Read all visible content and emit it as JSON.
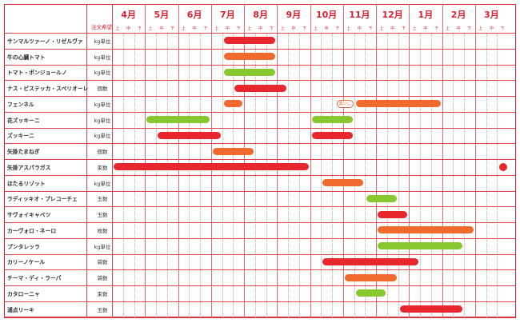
{
  "header": {
    "order_label": "注文希望",
    "months": [
      "4月",
      "5月",
      "6月",
      "7月",
      "8月",
      "9月",
      "10月",
      "11月",
      "12月",
      "1月",
      "2月",
      "3月"
    ],
    "subperiods": [
      "上",
      "中",
      "下"
    ]
  },
  "colors": {
    "red": "#e8262e",
    "orange": "#f06a2d",
    "green": "#86c82d",
    "border": "#d9202f"
  },
  "rows": [
    {
      "name": "サンマルツァーノ・リゼルヴァ",
      "unit": "kg単位",
      "bars": [
        {
          "color": "red",
          "start_month": "7月",
          "start_period": "中",
          "end_month": "8月",
          "end_period": "下"
        }
      ]
    },
    {
      "name": "牛の心臓トマト",
      "unit": "kg単位",
      "bars": [
        {
          "color": "orange",
          "start_month": "7月",
          "start_period": "中",
          "end_month": "8月",
          "end_period": "下"
        }
      ]
    },
    {
      "name": "トマト・ポンジョールノ",
      "unit": "kg単位",
      "bars": [
        {
          "color": "green",
          "start_month": "7月",
          "start_period": "中",
          "end_month": "8月",
          "end_period": "下"
        }
      ]
    },
    {
      "name": "ナス・ビステッカ・スペリオーレ",
      "unit": "個数",
      "bars": [
        {
          "color": "red",
          "start_month": "7月",
          "start_period": "下",
          "end_month": "9月",
          "end_period": "上"
        }
      ]
    },
    {
      "name": "フェンネル",
      "unit": "kg単位",
      "note": "葉少し",
      "bars": [
        {
          "color": "orange",
          "start_month": "7月",
          "start_period": "中",
          "end_month": "7月",
          "end_period": "下"
        },
        {
          "color": "orange",
          "start_month": "11月",
          "start_period": "中",
          "end_month": "1月",
          "end_period": "下"
        }
      ]
    },
    {
      "name": "花ズッキーニ",
      "unit": "kg単位",
      "bars": [
        {
          "color": "green",
          "start_month": "5月",
          "start_period": "上",
          "end_month": "6月",
          "end_period": "下"
        },
        {
          "color": "green",
          "start_month": "10月",
          "start_period": "上",
          "end_month": "11月",
          "end_period": "上"
        }
      ]
    },
    {
      "name": "ズッキーニ",
      "unit": "kg単位",
      "bars": [
        {
          "color": "red",
          "start_month": "5月",
          "start_period": "中",
          "end_month": "7月",
          "end_period": "上"
        },
        {
          "color": "red",
          "start_month": "10月",
          "start_period": "上",
          "end_month": "11月",
          "end_period": "上"
        }
      ]
    },
    {
      "name": "矢掛たまねぎ",
      "unit": "個数",
      "bars": [
        {
          "color": "orange",
          "start_month": "7月",
          "start_period": "上",
          "end_month": "8月",
          "end_period": "上"
        }
      ]
    },
    {
      "name": "矢掛アスパラガス",
      "unit": "束数",
      "bars": [
        {
          "color": "red",
          "start_month": "4月",
          "start_period": "上",
          "end_month": "9月",
          "end_period": "下"
        },
        {
          "color": "red",
          "start_month": "3月",
          "start_period": "下",
          "end_month": "3月",
          "end_period": "下"
        }
      ]
    },
    {
      "name": "ほたるリゾット",
      "unit": "kg単位",
      "bars": [
        {
          "color": "orange",
          "start_month": "10月",
          "start_period": "中",
          "end_month": "11月",
          "end_period": "中"
        }
      ]
    },
    {
      "name": "ラディッキオ・プレコーチェ",
      "unit": "玉数",
      "bars": [
        {
          "color": "green",
          "start_month": "11月",
          "start_period": "下",
          "end_month": "12月",
          "end_period": "中"
        }
      ]
    },
    {
      "name": "サヴォイキャベツ",
      "unit": "玉数",
      "bars": [
        {
          "color": "red",
          "start_month": "12月",
          "start_period": "上",
          "end_month": "12月",
          "end_period": "下"
        }
      ]
    },
    {
      "name": "カーヴォロ・ネーロ",
      "unit": "枚数",
      "bars": [
        {
          "color": "orange",
          "start_month": "12月",
          "start_period": "上",
          "end_month": "2月",
          "end_period": "下"
        }
      ]
    },
    {
      "name": "プンタレッラ",
      "unit": "kg単位",
      "bars": [
        {
          "color": "green",
          "start_month": "12月",
          "start_period": "上",
          "end_month": "2月",
          "end_period": "中"
        }
      ]
    },
    {
      "name": "カリーノケール",
      "unit": "袋数",
      "bars": [
        {
          "color": "red",
          "start_month": "10月",
          "start_period": "中",
          "end_month": "1月",
          "end_period": "上"
        }
      ]
    },
    {
      "name": "チーマ・ディ・ラーパ",
      "unit": "袋数",
      "bars": [
        {
          "color": "orange",
          "start_month": "11月",
          "start_period": "上",
          "end_month": "12月",
          "end_period": "中"
        }
      ]
    },
    {
      "name": "カタローニャ",
      "unit": "束数",
      "bars": [
        {
          "color": "green",
          "start_month": "11月",
          "start_period": "中",
          "end_month": "12月",
          "end_period": "上"
        }
      ]
    },
    {
      "name": "浦点リーキ",
      "unit": "玉数",
      "bars": [
        {
          "color": "red",
          "start_month": "12月",
          "start_period": "下",
          "end_month": "2月",
          "end_period": "中"
        }
      ]
    }
  ]
}
